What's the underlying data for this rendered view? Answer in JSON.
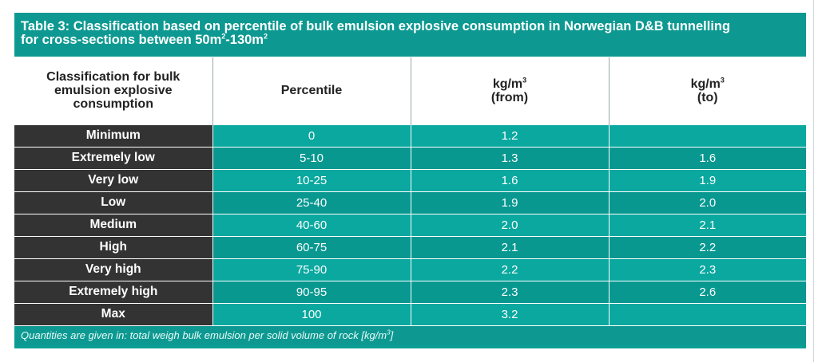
{
  "caption": {
    "text_main": "Table 3: Classification based on percentile of bulk emulsion explosive consumption in Norwegian D&B tunnelling",
    "text_line2_pre": "for cross-sections between 50m",
    "sup1": "2",
    "text_line2_mid": "-130m",
    "sup2": "2"
  },
  "headers": {
    "classification": "Classification for bulk emulsion explosive consumption",
    "percentile": "Percentile",
    "from_unit": "kg/m",
    "from_sup": "3",
    "from_label": "(from)",
    "to_unit": "kg/m",
    "to_sup": "3",
    "to_label": "(to)"
  },
  "rows": [
    {
      "label": "Minimum",
      "percentile": "0",
      "from": "1.2",
      "to": ""
    },
    {
      "label": "Extremely low",
      "percentile": "5-10",
      "from": "1.3",
      "to": "1.6"
    },
    {
      "label": "Very low",
      "percentile": "10-25",
      "from": "1.6",
      "to": "1.9"
    },
    {
      "label": "Low",
      "percentile": "25-40",
      "from": "1.9",
      "to": "2.0"
    },
    {
      "label": "Medium",
      "percentile": "40-60",
      "from": "2.0",
      "to": "2.1"
    },
    {
      "label": "High",
      "percentile": "60-75",
      "from": "2.1",
      "to": "2.2"
    },
    {
      "label": "Very high",
      "percentile": "75-90",
      "from": "2.2",
      "to": "2.3"
    },
    {
      "label": "Extremely high",
      "percentile": "90-95",
      "from": "2.3",
      "to": "2.6"
    },
    {
      "label": "Max",
      "percentile": "100",
      "from": "3.2",
      "to": ""
    }
  ],
  "footnote": {
    "text": "Quantities are given in: total weigh bulk emulsion per solid volume of rock [kg/m",
    "sup": "3",
    "end": "]"
  },
  "colors": {
    "teal_header": "#0d9991",
    "teal_cell": "#0aa89f",
    "teal_cell_alt": "#089890",
    "label_dark": "#333333"
  }
}
